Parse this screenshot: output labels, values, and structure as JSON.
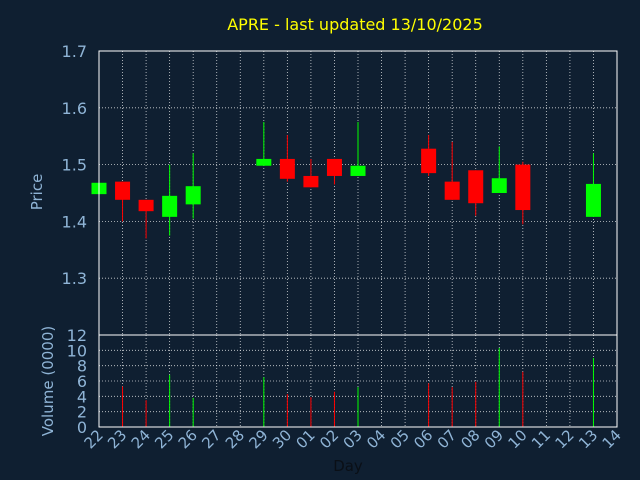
{
  "chart_data": {
    "type": "candlestick",
    "title": "APRE - last updated 13/10/2025",
    "xlabel": "Day",
    "ylabel": "Price",
    "volume_ylabel": "Volume (0000)",
    "price_ylim": [
      1.2,
      1.7
    ],
    "volume_ylim": [
      0,
      12
    ],
    "price_ticks": [
      "1.3",
      "1.4",
      "1.5",
      "1.6",
      "1.7"
    ],
    "volume_ticks": [
      "0",
      "2",
      "4",
      "6",
      "8",
      "10",
      "12"
    ],
    "grid": true,
    "colors": {
      "background": "#0f1f31",
      "frame": "#ffffff",
      "grid": "#ffffff",
      "title": "#ffff00",
      "label": "#8fb4d6",
      "up": "#00ff00",
      "down": "#ff0000"
    },
    "x_tick_labels": [
      "22",
      "23",
      "24",
      "25",
      "26",
      "27",
      "28",
      "29",
      "30",
      "01",
      "02",
      "03",
      "04",
      "05",
      "06",
      "07",
      "08",
      "09",
      "10",
      "11",
      "12",
      "13",
      "14"
    ],
    "candles": [
      {
        "x": 0,
        "open": 1.448,
        "high": 1.468,
        "low": 1.448,
        "close": 1.468,
        "volume": 0
      },
      {
        "x": 1,
        "open": 1.47,
        "high": 1.47,
        "low": 1.4,
        "close": 1.438,
        "volume": 5.3
      },
      {
        "x": 2,
        "open": 1.438,
        "high": 1.438,
        "low": 1.37,
        "close": 1.418,
        "volume": 3.5
      },
      {
        "x": 3,
        "open": 1.408,
        "high": 1.5,
        "low": 1.375,
        "close": 1.445,
        "volume": 6.8
      },
      {
        "x": 4,
        "open": 1.43,
        "high": 1.52,
        "low": 1.405,
        "close": 1.462,
        "volume": 3.8
      },
      {
        "x": 7,
        "open": 1.498,
        "high": 1.575,
        "low": 1.498,
        "close": 1.51,
        "volume": 6.5
      },
      {
        "x": 8,
        "open": 1.51,
        "high": 1.552,
        "low": 1.47,
        "close": 1.475,
        "volume": 4.3
      },
      {
        "x": 9,
        "open": 1.48,
        "high": 1.51,
        "low": 1.46,
        "close": 1.46,
        "volume": 3.9
      },
      {
        "x": 10,
        "open": 1.51,
        "high": 1.51,
        "low": 1.465,
        "close": 1.48,
        "volume": 4.6
      },
      {
        "x": 11,
        "open": 1.48,
        "high": 1.575,
        "low": 1.48,
        "close": 1.498,
        "volume": 5.2
      },
      {
        "x": 14,
        "open": 1.528,
        "high": 1.552,
        "low": 1.48,
        "close": 1.485,
        "volume": 5.7
      },
      {
        "x": 15,
        "open": 1.47,
        "high": 1.54,
        "low": 1.438,
        "close": 1.438,
        "volume": 5.2
      },
      {
        "x": 16,
        "open": 1.49,
        "high": 1.49,
        "low": 1.41,
        "close": 1.432,
        "volume": 5.9
      },
      {
        "x": 17,
        "open": 1.45,
        "high": 1.532,
        "low": 1.45,
        "close": 1.476,
        "volume": 10.3
      },
      {
        "x": 18,
        "open": 1.5,
        "high": 1.505,
        "low": 1.395,
        "close": 1.42,
        "volume": 7.2
      },
      {
        "x": 21,
        "open": 1.408,
        "high": 1.52,
        "low": 1.408,
        "close": 1.466,
        "volume": 9.0
      }
    ]
  }
}
